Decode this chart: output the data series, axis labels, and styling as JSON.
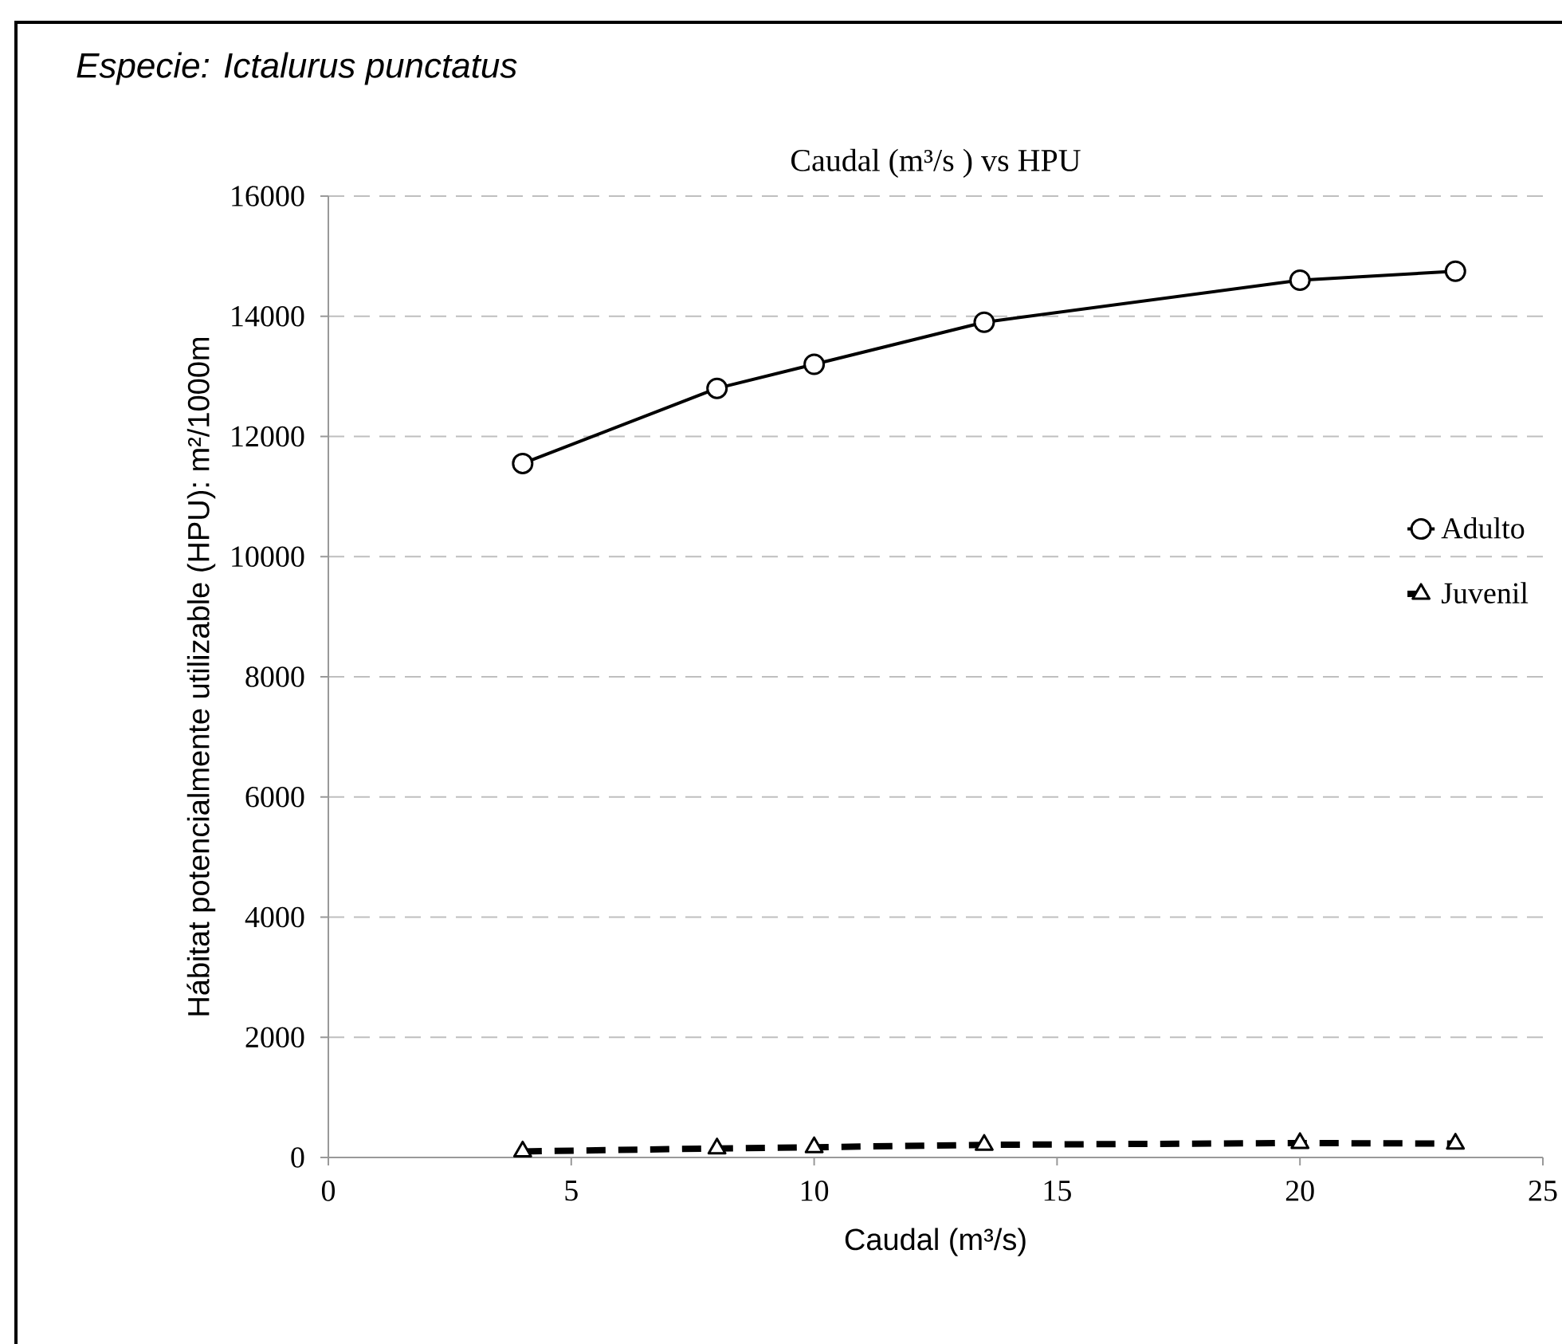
{
  "chart_data": {
    "type": "line",
    "title": "Caudal  (m³/s )  vs  HPU",
    "xlabel": "Caudal (m³/s)",
    "ylabel": "Hábitat potencialmente utilizable (HPU): m²/1000m",
    "annotations": [
      "*Especie: Ictalurus punctatus*"
    ],
    "x": [
      4,
      8,
      10,
      13.5,
      20,
      23.2
    ],
    "series": [
      {
        "name": "Adulto",
        "color": "#000000",
        "values": [
          11550,
          12800,
          13200,
          13900,
          14600,
          14750
        ],
        "marker": "circle",
        "line_style": "solid"
      },
      {
        "name": "Juvenil",
        "color": "#000000",
        "values": [
          100,
          150,
          170,
          210,
          240,
          230
        ],
        "marker": "triangle",
        "line_style": "dashed"
      }
    ],
    "xlim": [
      0,
      25
    ],
    "xticks": [
      0,
      5,
      10,
      15,
      20,
      25
    ],
    "ylim": [
      0,
      16000
    ],
    "yticks": [
      0,
      2000,
      4000,
      6000,
      8000,
      10000,
      12000,
      14000,
      16000
    ],
    "grid": "y",
    "legend": "right"
  }
}
